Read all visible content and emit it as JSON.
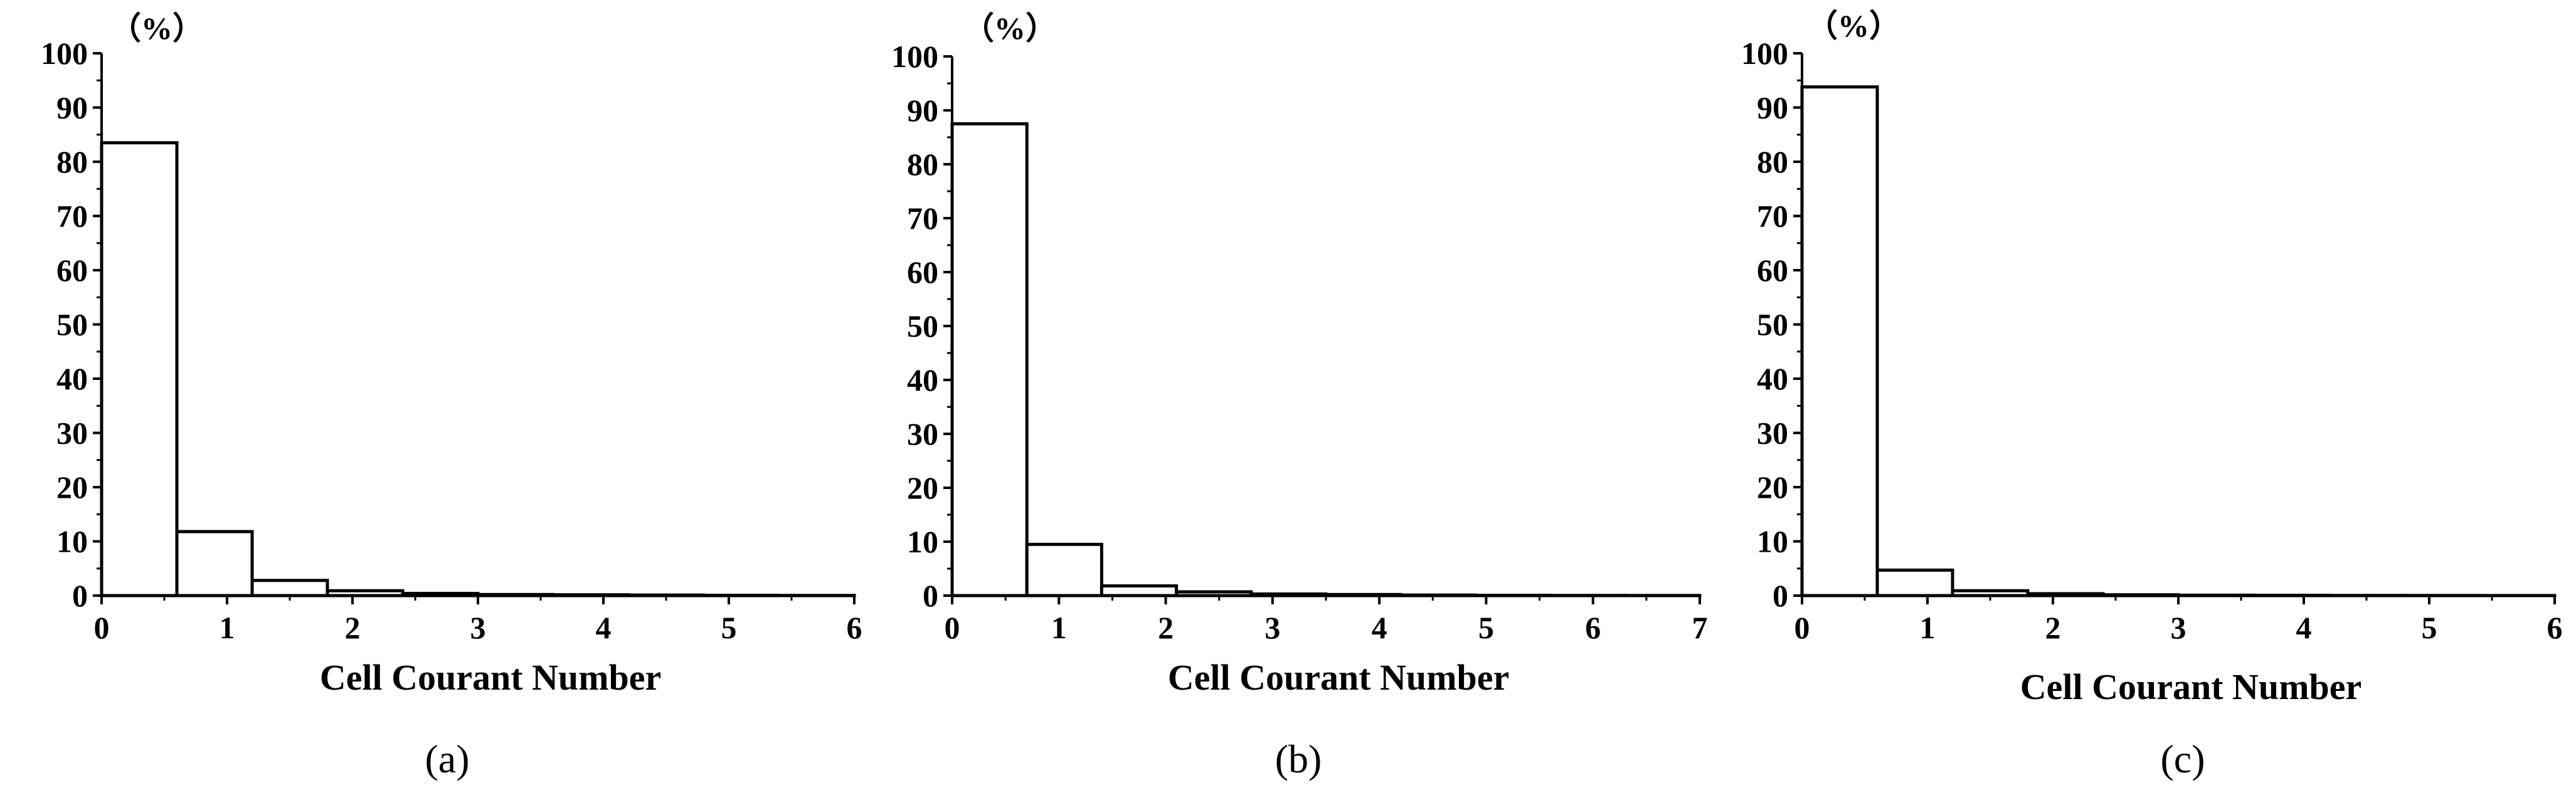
{
  "chart_data": [
    {
      "type": "bar",
      "panel_label": "(a)",
      "ylabel": "（%）",
      "xlabel": "Cell Courant Number",
      "xlim": [
        0,
        6
      ],
      "ylim": [
        0,
        100
      ],
      "xticks": [
        "0",
        "1",
        "2",
        "3",
        "4",
        "5",
        "6"
      ],
      "yticks": [
        "0",
        "10",
        "20",
        "30",
        "40",
        "50",
        "60",
        "70",
        "80",
        "90",
        "100"
      ],
      "bins": [
        {
          "x0": 0.0,
          "x1": 0.6,
          "value": 83.5
        },
        {
          "x0": 0.6,
          "x1": 1.2,
          "value": 11.8
        },
        {
          "x0": 1.2,
          "x1": 1.8,
          "value": 2.8
        },
        {
          "x0": 1.8,
          "x1": 2.4,
          "value": 0.9
        },
        {
          "x0": 2.4,
          "x1": 3.0,
          "value": 0.4
        },
        {
          "x0": 3.0,
          "x1": 3.6,
          "value": 0.2
        },
        {
          "x0": 3.6,
          "x1": 4.2,
          "value": 0.15
        },
        {
          "x0": 4.2,
          "x1": 4.8,
          "value": 0.1
        },
        {
          "x0": 4.8,
          "x1": 5.4,
          "value": 0.05
        },
        {
          "x0": 5.4,
          "x1": 6.0,
          "value": 0.03
        }
      ],
      "grid": false
    },
    {
      "type": "bar",
      "panel_label": "(b)",
      "ylabel": "（%）",
      "xlabel": "Cell Courant Number",
      "xlim": [
        0,
        7
      ],
      "ylim": [
        0,
        100
      ],
      "xticks": [
        "0",
        "1",
        "2",
        "3",
        "4",
        "5",
        "6",
        "7"
      ],
      "yticks": [
        "0",
        "10",
        "20",
        "30",
        "40",
        "50",
        "60",
        "70",
        "80",
        "90",
        "100"
      ],
      "bins": [
        {
          "x0": 0.0,
          "x1": 0.7,
          "value": 87.5
        },
        {
          "x0": 0.7,
          "x1": 1.4,
          "value": 9.5
        },
        {
          "x0": 1.4,
          "x1": 2.1,
          "value": 1.8
        },
        {
          "x0": 2.1,
          "x1": 2.8,
          "value": 0.7
        },
        {
          "x0": 2.8,
          "x1": 3.5,
          "value": 0.3
        },
        {
          "x0": 3.5,
          "x1": 4.2,
          "value": 0.2
        },
        {
          "x0": 4.2,
          "x1": 4.9,
          "value": 0.1
        },
        {
          "x0": 4.9,
          "x1": 5.6,
          "value": 0.05
        },
        {
          "x0": 5.6,
          "x1": 6.3,
          "value": 0.03
        },
        {
          "x0": 6.3,
          "x1": 7.0,
          "value": 0.02
        }
      ],
      "grid": false
    },
    {
      "type": "bar",
      "panel_label": "(c)",
      "ylabel": "（%）",
      "xlabel": "Cell Courant Number",
      "xlim": [
        0,
        6
      ],
      "ylim": [
        0,
        100
      ],
      "xticks": [
        "0",
        "1",
        "2",
        "3",
        "4",
        "5",
        "6"
      ],
      "yticks": [
        "0",
        "10",
        "20",
        "30",
        "40",
        "50",
        "60",
        "70",
        "80",
        "90",
        "100"
      ],
      "bins": [
        {
          "x0": 0.0,
          "x1": 0.6,
          "value": 93.8
        },
        {
          "x0": 0.6,
          "x1": 1.2,
          "value": 4.7
        },
        {
          "x0": 1.2,
          "x1": 1.8,
          "value": 0.9
        },
        {
          "x0": 1.8,
          "x1": 2.4,
          "value": 0.35
        },
        {
          "x0": 2.4,
          "x1": 3.0,
          "value": 0.15
        },
        {
          "x0": 3.0,
          "x1": 3.6,
          "value": 0.08
        },
        {
          "x0": 3.6,
          "x1": 4.2,
          "value": 0.05
        },
        {
          "x0": 4.2,
          "x1": 4.8,
          "value": 0.03
        },
        {
          "x0": 4.8,
          "x1": 5.4,
          "value": 0.02
        },
        {
          "x0": 5.4,
          "x1": 6.0,
          "value": 0.01
        }
      ],
      "grid": false
    }
  ]
}
